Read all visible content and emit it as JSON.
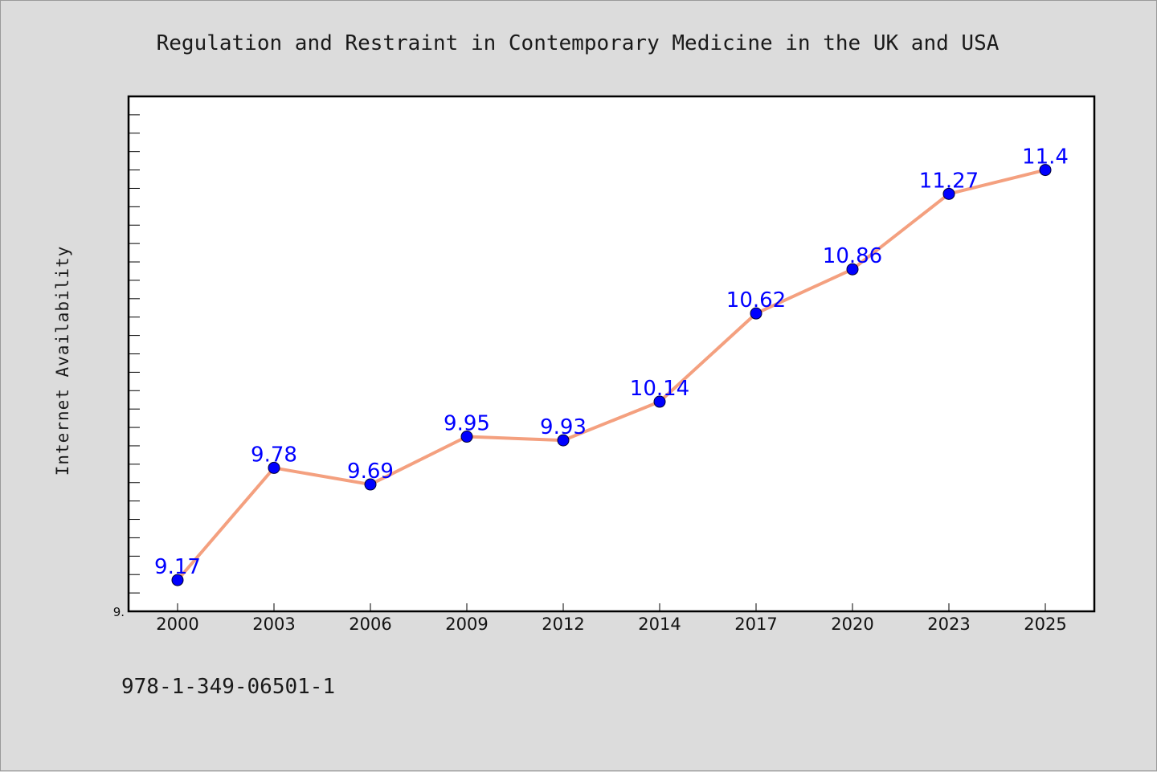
{
  "chart_data": {
    "type": "line",
    "title": "Regulation and Restraint in Contemporary Medicine in the UK and USA",
    "xlabel": "",
    "ylabel": "Internet Availability",
    "categories": [
      "2000",
      "2003",
      "2006",
      "2009",
      "2012",
      "2014",
      "2017",
      "2020",
      "2023",
      "2025"
    ],
    "series": [
      {
        "values": [
          9.17,
          9.78,
          9.69,
          9.95,
          9.93,
          10.14,
          10.62,
          10.86,
          11.27,
          11.4
        ],
        "data_labels": [
          "9.17",
          "9.78",
          "9.69",
          "9.95",
          "9.93",
          "10.14",
          "10.62",
          "10.86",
          "11.27",
          "11.4"
        ],
        "line_color": "#f4a07f",
        "marker_color": "#0000ff"
      }
    ],
    "ylim": [
      9.0,
      11.8
    ],
    "ytick_label": "9.",
    "grid": false,
    "legend": "none"
  },
  "footer": {
    "isbn": "978-1-349-06501-1"
  }
}
